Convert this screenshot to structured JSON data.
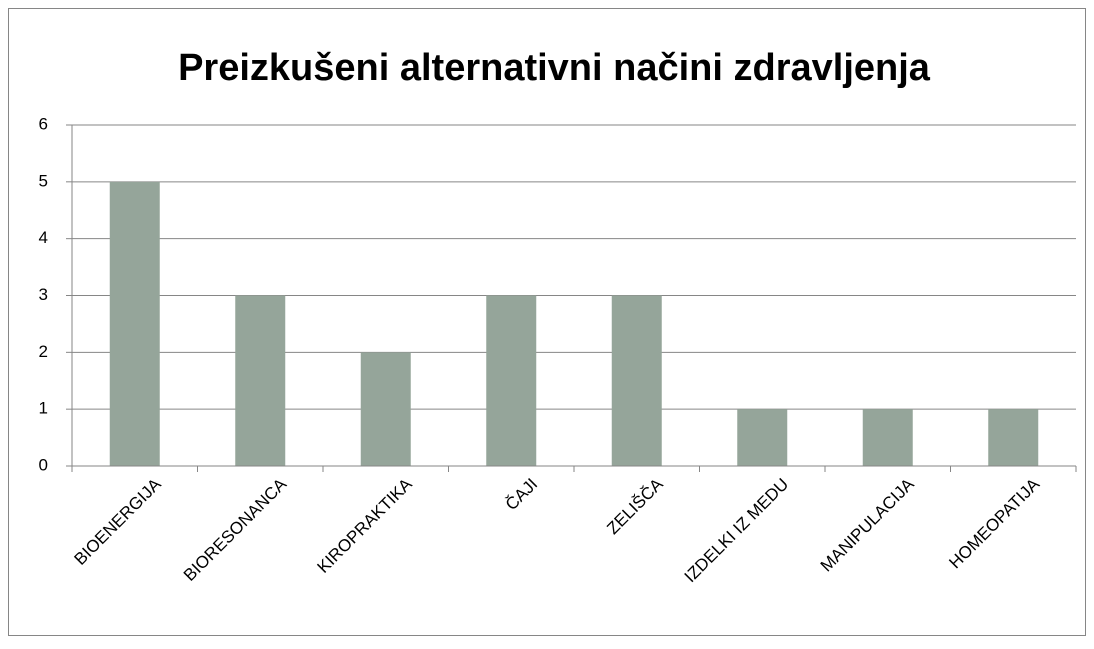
{
  "chart_data": {
    "type": "bar",
    "title": "Preizkušeni alternativni načini zdravljenja",
    "categories": [
      "BIOENERGIJA",
      "BIORESONANCA",
      "KIROPRAKTIKA",
      "ČAJI",
      "ZELIŠČA",
      "IZDELKI IZ MEDU",
      "MANIPULACIJA",
      "HOMEOPATIJA"
    ],
    "values": [
      5,
      3,
      2,
      3,
      3,
      1,
      1,
      1
    ],
    "color": "#95a59a",
    "ylim": [
      0,
      6
    ],
    "yticks": [
      0,
      1,
      2,
      3,
      4,
      5,
      6
    ],
    "grid": true
  }
}
